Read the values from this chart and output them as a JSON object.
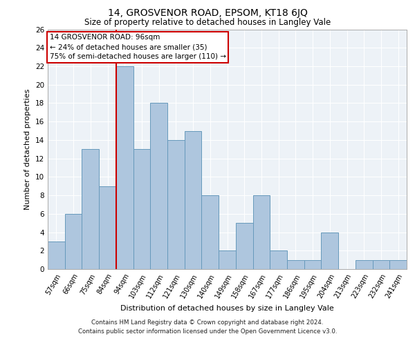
{
  "title": "14, GROSVENOR ROAD, EPSOM, KT18 6JQ",
  "subtitle": "Size of property relative to detached houses in Langley Vale",
  "xlabel": "Distribution of detached houses by size in Langley Vale",
  "ylabel": "Number of detached properties",
  "categories": [
    "57sqm",
    "66sqm",
    "75sqm",
    "84sqm",
    "94sqm",
    "103sqm",
    "112sqm",
    "121sqm",
    "130sqm",
    "140sqm",
    "149sqm",
    "158sqm",
    "167sqm",
    "177sqm",
    "186sqm",
    "195sqm",
    "204sqm",
    "213sqm",
    "223sqm",
    "232sqm",
    "241sqm"
  ],
  "values": [
    3,
    6,
    13,
    9,
    22,
    13,
    18,
    14,
    15,
    8,
    2,
    5,
    8,
    2,
    1,
    1,
    4,
    0,
    1,
    1,
    1
  ],
  "bar_color": "#aec6de",
  "bar_edgecolor": "#6699bb",
  "vline_color": "#cc0000",
  "vline_position": 3.5,
  "ylim": [
    0,
    26
  ],
  "yticks": [
    0,
    2,
    4,
    6,
    8,
    10,
    12,
    14,
    16,
    18,
    20,
    22,
    24,
    26
  ],
  "annotation_title": "14 GROSVENOR ROAD: 96sqm",
  "annotation_line1": "← 24% of detached houses are smaller (35)",
  "annotation_line2": "75% of semi-detached houses are larger (110) →",
  "annotation_box_color": "#cc0000",
  "footnote1": "Contains HM Land Registry data © Crown copyright and database right 2024.",
  "footnote2": "Contains public sector information licensed under the Open Government Licence v3.0.",
  "background_color": "#edf2f7",
  "grid_color": "#ffffff"
}
